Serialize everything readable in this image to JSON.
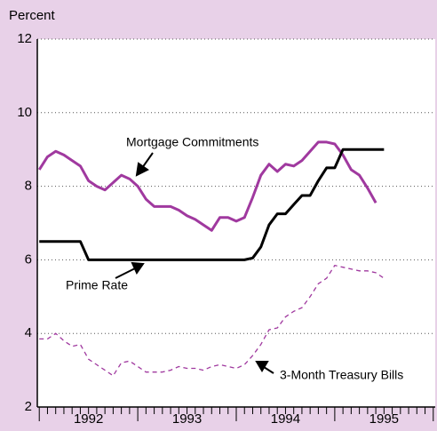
{
  "chart_data": {
    "type": "line",
    "y_label": "Percent",
    "x": [
      1992,
      1992.083,
      1992.167,
      1992.25,
      1992.333,
      1992.417,
      1992.5,
      1992.583,
      1992.667,
      1992.75,
      1992.833,
      1992.917,
      1993,
      1993.083,
      1993.167,
      1993.25,
      1993.333,
      1993.417,
      1993.5,
      1993.583,
      1993.667,
      1993.75,
      1993.833,
      1993.917,
      1994,
      1994.083,
      1994.167,
      1994.25,
      1994.333,
      1994.417,
      1994.5,
      1994.583,
      1994.667,
      1994.75,
      1994.833,
      1994.917,
      1995,
      1995.083,
      1995.167,
      1995.25,
      1995.333,
      1995.417,
      1995.5
    ],
    "series": [
      {
        "name": "Mortgage Commitments",
        "color": "#a0399f",
        "dash": false,
        "values": [
          8.45,
          8.8,
          8.95,
          8.85,
          8.7,
          8.55,
          8.15,
          8.0,
          7.9,
          8.1,
          8.3,
          8.2,
          8.0,
          7.65,
          7.45,
          7.45,
          7.45,
          7.35,
          7.2,
          7.1,
          6.95,
          6.8,
          7.15,
          7.15,
          7.05,
          7.15,
          7.7,
          8.3,
          8.6,
          8.4,
          8.6,
          8.55,
          8.7,
          8.95,
          9.2,
          9.2,
          9.15,
          8.85,
          8.45,
          8.3,
          7.95,
          7.55,
          null
        ]
      },
      {
        "name": "Prime Rate",
        "color": "#000000",
        "dash": false,
        "values": [
          6.5,
          6.5,
          6.5,
          6.5,
          6.5,
          6.5,
          6.0,
          6.0,
          6.0,
          6.0,
          6.0,
          6.0,
          6.0,
          6.0,
          6.0,
          6.0,
          6.0,
          6.0,
          6.0,
          6.0,
          6.0,
          6.0,
          6.0,
          6.0,
          6.0,
          6.0,
          6.05,
          6.35,
          6.95,
          7.25,
          7.25,
          7.5,
          7.75,
          7.75,
          8.15,
          8.5,
          8.5,
          9.0,
          9.0,
          9.0,
          9.0,
          9.0,
          9.0
        ]
      },
      {
        "name": "3-Month Treasury Bills",
        "color": "#a0399f",
        "dash": true,
        "values": [
          3.85,
          3.85,
          4.0,
          3.8,
          3.65,
          3.7,
          3.3,
          3.15,
          3.0,
          2.85,
          3.2,
          3.25,
          3.1,
          2.95,
          2.95,
          2.95,
          3.0,
          3.1,
          3.05,
          3.05,
          3.0,
          3.1,
          3.15,
          3.1,
          3.05,
          3.15,
          3.4,
          3.7,
          4.1,
          4.15,
          4.45,
          4.6,
          4.7,
          5.0,
          5.35,
          5.5,
          5.85,
          5.8,
          5.75,
          5.7,
          5.7,
          5.65,
          5.5
        ]
      }
    ],
    "xlim": [
      1991.98,
      1996.02
    ],
    "xticks": [
      {
        "value": 1992.5,
        "label": "1992"
      },
      {
        "value": 1993.5,
        "label": "1993"
      },
      {
        "value": 1994.5,
        "label": "1994"
      },
      {
        "value": 1995.5,
        "label": "1995"
      }
    ],
    "ylim": [
      2,
      12
    ],
    "yticks": [
      2,
      4,
      6,
      8,
      10,
      12
    ],
    "grid": true
  }
}
